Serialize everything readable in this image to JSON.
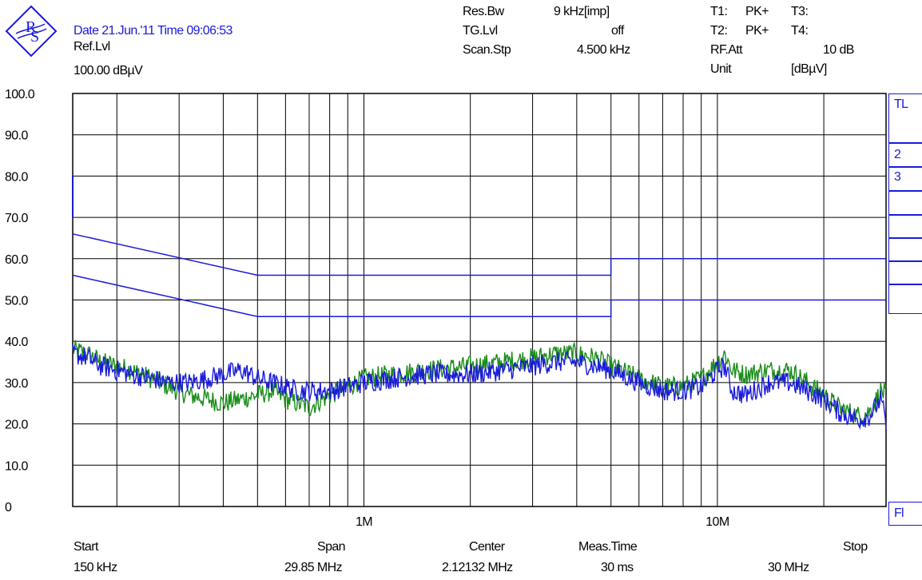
{
  "header": {
    "date_time": "Date 21.Jun.'11  Time 09:06:53",
    "ref_label": "Ref.Lvl",
    "ref_value": "100.00 dBµV",
    "res_bw_label": "Res.Bw",
    "res_bw_value": "9 kHz[imp]",
    "tg_label": "TG.Lvl",
    "tg_value": "off",
    "scan_label": "Scan.Stp",
    "scan_value": "4.500 kHz",
    "t1": "T1:",
    "t1_det": "PK+",
    "t3": "T3:",
    "t2": "T2:",
    "t2_det": "PK+",
    "t4": "T4:",
    "rfatt_label": "RF.Att",
    "rfatt_value": "10 dB",
    "unit_label": "Unit",
    "unit_value": "[dBµV]"
  },
  "side": {
    "tl": "TL",
    "n2": "2",
    "n3": "3",
    "fl": "Fl"
  },
  "footer": {
    "start_label": "Start",
    "start_value": "150 kHz",
    "span_label": "Span",
    "span_value": "29.85 MHz",
    "center_label": "Center",
    "center_value": "2.12132 MHz",
    "meas_label": "Meas.Time",
    "meas_value": "30 ms",
    "stop_label": "Stop",
    "stop_value": "30 MHz"
  },
  "colors": {
    "limit_lines": "#1a1adb",
    "trace_blue": "#1a1adb",
    "trace_green": "#1a8c1a",
    "grid": "#000000"
  },
  "chart_data": {
    "type": "line",
    "x_scale": "log",
    "xlim_hz": [
      150000,
      30000000
    ],
    "ylim": [
      0,
      100
    ],
    "yticks": [
      "0",
      "10.0",
      "20.0",
      "30.0",
      "40.0",
      "50.0",
      "60.0",
      "70.0",
      "80.0",
      "90.0",
      "100.0"
    ],
    "xtick_labels": [
      {
        "x": 1000000,
        "label": "1M"
      },
      {
        "x": 10000000,
        "label": "10M"
      }
    ],
    "limit_lines": [
      {
        "points": [
          [
            150000,
            66
          ],
          [
            500000,
            56
          ],
          [
            5000000,
            56
          ],
          [
            5000000,
            60
          ],
          [
            30000000,
            60
          ]
        ]
      },
      {
        "points": [
          [
            150000,
            56
          ],
          [
            500000,
            46
          ],
          [
            5000000,
            46
          ],
          [
            5000000,
            50
          ],
          [
            30000000,
            50
          ]
        ]
      }
    ],
    "series": [
      {
        "color": "#1a8c1a",
        "points": [
          [
            150000,
            38
          ],
          [
            165000,
            37
          ],
          [
            180000,
            35
          ],
          [
            200000,
            34
          ],
          [
            220000,
            33
          ],
          [
            250000,
            31
          ],
          [
            280000,
            29
          ],
          [
            320000,
            27
          ],
          [
            360000,
            26
          ],
          [
            400000,
            25
          ],
          [
            450000,
            26
          ],
          [
            500000,
            27
          ],
          [
            550000,
            28
          ],
          [
            600000,
            26
          ],
          [
            650000,
            25
          ],
          [
            700000,
            24
          ],
          [
            800000,
            27
          ],
          [
            900000,
            29
          ],
          [
            1000000,
            31
          ],
          [
            1200000,
            32
          ],
          [
            1500000,
            33
          ],
          [
            2000000,
            34
          ],
          [
            2500000,
            35
          ],
          [
            3000000,
            36
          ],
          [
            3500000,
            37
          ],
          [
            4000000,
            37
          ],
          [
            4500000,
            36
          ],
          [
            5000000,
            34
          ],
          [
            6000000,
            31
          ],
          [
            7000000,
            29
          ],
          [
            8000000,
            29
          ],
          [
            9000000,
            31
          ],
          [
            10000000,
            35
          ],
          [
            10500000,
            37
          ],
          [
            11000000,
            33
          ],
          [
            12000000,
            32
          ],
          [
            14000000,
            33
          ],
          [
            16000000,
            33
          ],
          [
            18000000,
            30
          ],
          [
            20000000,
            27
          ],
          [
            22000000,
            24
          ],
          [
            25000000,
            22
          ],
          [
            27000000,
            23
          ],
          [
            29000000,
            28
          ],
          [
            30000000,
            27
          ]
        ]
      },
      {
        "color": "#1a1adb",
        "points": [
          [
            150000,
            37
          ],
          [
            165000,
            36
          ],
          [
            180000,
            34
          ],
          [
            200000,
            33
          ],
          [
            220000,
            32
          ],
          [
            250000,
            31
          ],
          [
            280000,
            30
          ],
          [
            320000,
            30
          ],
          [
            360000,
            31
          ],
          [
            400000,
            32
          ],
          [
            450000,
            33
          ],
          [
            500000,
            31
          ],
          [
            550000,
            30
          ],
          [
            600000,
            29
          ],
          [
            650000,
            28
          ],
          [
            700000,
            28
          ],
          [
            800000,
            28
          ],
          [
            900000,
            29
          ],
          [
            1000000,
            30
          ],
          [
            1200000,
            31
          ],
          [
            1500000,
            32
          ],
          [
            2000000,
            32
          ],
          [
            2500000,
            33
          ],
          [
            3000000,
            34
          ],
          [
            3500000,
            35
          ],
          [
            4000000,
            35
          ],
          [
            4500000,
            34
          ],
          [
            5000000,
            33
          ],
          [
            6000000,
            30
          ],
          [
            7000000,
            28
          ],
          [
            8000000,
            28
          ],
          [
            9000000,
            29
          ],
          [
            10000000,
            33
          ],
          [
            10500000,
            34
          ],
          [
            11000000,
            28
          ],
          [
            12000000,
            27
          ],
          [
            14000000,
            30
          ],
          [
            16000000,
            30
          ],
          [
            18000000,
            28
          ],
          [
            20000000,
            26
          ],
          [
            22000000,
            23
          ],
          [
            25000000,
            21
          ],
          [
            27000000,
            22
          ],
          [
            29000000,
            26
          ],
          [
            30000000,
            20
          ]
        ]
      }
    ]
  }
}
